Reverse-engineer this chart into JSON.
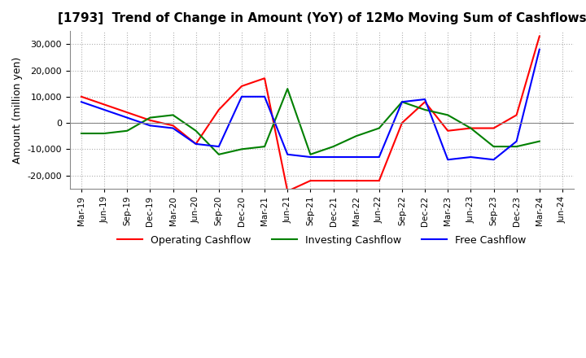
{
  "title": "[1793]  Trend of Change in Amount (YoY) of 12Mo Moving Sum of Cashflows",
  "ylabel": "Amount (million yen)",
  "x_labels": [
    "Mar-19",
    "Jun-19",
    "Sep-19",
    "Dec-19",
    "Mar-20",
    "Jun-20",
    "Sep-20",
    "Dec-20",
    "Mar-21",
    "Jun-21",
    "Sep-21",
    "Dec-21",
    "Mar-22",
    "Jun-22",
    "Sep-22",
    "Dec-22",
    "Mar-23",
    "Jun-23",
    "Sep-23",
    "Dec-23",
    "Mar-24",
    "Jun-24"
  ],
  "operating": [
    10000,
    7000,
    4000,
    1000,
    -1000,
    -8000,
    5000,
    14000,
    17000,
    -26000,
    -22000,
    -22000,
    -22000,
    -22000,
    0,
    8000,
    -3000,
    -2000,
    -2000,
    3000,
    33000,
    null
  ],
  "investing": [
    -4000,
    -4000,
    -3000,
    2000,
    3000,
    -3000,
    -12000,
    -10000,
    -9000,
    13000,
    -12000,
    -9000,
    -5000,
    -2000,
    8000,
    5000,
    3000,
    -2000,
    -9000,
    -9000,
    -7000,
    null
  ],
  "free": [
    8000,
    5000,
    2000,
    -1000,
    -2000,
    -8000,
    -9000,
    10000,
    10000,
    -12000,
    -13000,
    -13000,
    -13000,
    -13000,
    8000,
    9000,
    -14000,
    -13000,
    -14000,
    -7000,
    28000,
    null
  ],
  "ylim": [
    -25000,
    35000
  ],
  "yticks": [
    -20000,
    -10000,
    0,
    10000,
    20000,
    30000
  ],
  "operating_color": "#ff0000",
  "investing_color": "#008000",
  "free_color": "#0000ff",
  "background_color": "#ffffff",
  "grid_color": "#b0b0b0"
}
